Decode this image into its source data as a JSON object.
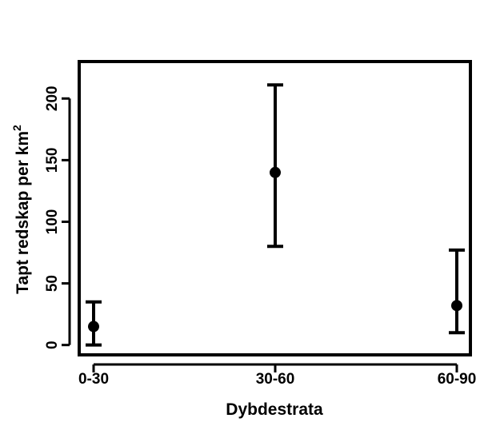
{
  "chart_data": {
    "type": "scatter",
    "title": "",
    "xlabel": "Dybdestrata",
    "ylabel": "Tapt redskap per km",
    "ylabel_superscript": "2",
    "categories": [
      "0-30",
      "30-60",
      "60-90"
    ],
    "values": [
      15,
      140,
      32
    ],
    "error_low": [
      0,
      80,
      10
    ],
    "error_high": [
      35,
      211,
      77
    ],
    "yticks": [
      0,
      50,
      100,
      150,
      200
    ],
    "ylim": [
      -8,
      230
    ],
    "grid": false,
    "legend": "none",
    "colors": {
      "mark": "#000000",
      "frame": "#000000"
    }
  }
}
